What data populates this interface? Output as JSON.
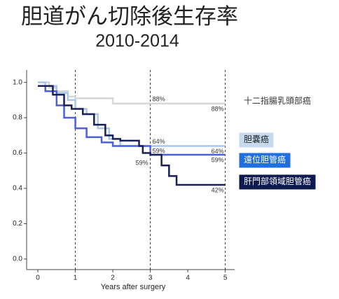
{
  "chart_data": {
    "type": "step",
    "title": "胆道がん切除後生存率",
    "subtitle": "2010-2014",
    "x_label": "Years after surgery",
    "xlim": [
      -0.3,
      5.25
    ],
    "ylim": [
      -0.06,
      1.07
    ],
    "xticks": [
      0,
      1,
      2,
      3,
      4,
      5
    ],
    "yticks": [
      {
        "value": 0,
        "label": "0.0"
      },
      0.2,
      0.4,
      0.6,
      0.8,
      {
        "value": 1,
        "label": "1.0"
      }
    ],
    "reference_lines_x": [
      1,
      3,
      5
    ],
    "series": [
      {
        "name": "十二指腸乳頭部癌",
        "color": "#d6d6d6",
        "legend_fill": "#ffffff",
        "legend_text": "#333333",
        "x": [
          0,
          0.3,
          0.5,
          0.8,
          1.0,
          2.0,
          5.0
        ],
        "values": [
          1.0,
          0.97,
          0.95,
          0.92,
          0.91,
          0.88,
          0.88
        ],
        "annotations": [
          {
            "x": 3,
            "value": 0.88,
            "label": "88%"
          },
          {
            "x": 5,
            "value": 0.88,
            "label": "88%"
          }
        ]
      },
      {
        "name": "胆嚢癌",
        "color": "#a9c8e8",
        "legend_fill": "#c5d9ef",
        "legend_text": "#222222",
        "x": [
          0,
          0.2,
          0.5,
          0.8,
          1.0,
          1.3,
          1.6,
          1.9,
          2.2,
          5.0
        ],
        "values": [
          1.0,
          0.98,
          0.94,
          0.9,
          0.85,
          0.82,
          0.74,
          0.68,
          0.64,
          0.64
        ],
        "annotations": [
          {
            "x": 3,
            "value": 0.64,
            "label": "64%"
          },
          {
            "x": 5,
            "value": 0.64,
            "label": "64%"
          }
        ]
      },
      {
        "name": "遠位胆管癌",
        "color": "#4a5fd8",
        "legend_fill": "#1f6fdf",
        "legend_text": "#ffffff",
        "x": [
          0,
          0.2,
          0.5,
          0.7,
          1.0,
          1.3,
          1.7,
          2.0,
          3.0,
          5.0
        ],
        "values": [
          0.98,
          0.95,
          0.87,
          0.8,
          0.74,
          0.69,
          0.66,
          0.64,
          0.59,
          0.59
        ],
        "annotations": [
          {
            "x": 3,
            "value": 0.59,
            "label": "59%"
          },
          {
            "x": 5,
            "value": 0.59,
            "label": "59%"
          }
        ]
      },
      {
        "name": "肝門部領域胆管癌",
        "color": "#1a1f5a",
        "legend_fill": "#0d1a4f",
        "legend_text": "#ffffff",
        "x": [
          0,
          0.4,
          0.7,
          0.9,
          1.2,
          1.5,
          1.8,
          2.0,
          2.2,
          2.7,
          2.8,
          3.0,
          3.3,
          3.5,
          3.7,
          5.0
        ],
        "values": [
          0.98,
          0.93,
          0.87,
          0.85,
          0.82,
          0.76,
          0.7,
          0.68,
          0.67,
          0.64,
          0.6,
          0.59,
          0.53,
          0.47,
          0.42,
          0.42
        ],
        "annotations": [
          {
            "x": 3,
            "value": 0.59,
            "label": "59%"
          },
          {
            "x": 5,
            "value": 0.42,
            "label": "42%"
          }
        ]
      }
    ]
  }
}
